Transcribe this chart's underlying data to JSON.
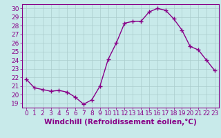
{
  "x": [
    0,
    1,
    2,
    3,
    4,
    5,
    6,
    7,
    8,
    9,
    10,
    11,
    12,
    13,
    14,
    15,
    16,
    17,
    18,
    19,
    20,
    21,
    22,
    23
  ],
  "y": [
    21.8,
    20.8,
    20.6,
    20.4,
    20.5,
    20.3,
    19.7,
    18.9,
    19.4,
    21.0,
    24.1,
    26.0,
    28.3,
    28.5,
    28.5,
    29.6,
    30.0,
    29.8,
    28.8,
    27.5,
    25.6,
    25.2,
    24.0,
    22.8
  ],
  "line_color": "#880088",
  "marker": "+",
  "markersize": 4,
  "linewidth": 1.0,
  "bg_color": "#c8eaea",
  "grid_color": "#aacccc",
  "xlabel": "Windchill (Refroidissement éolien,°C)",
  "xlim": [
    -0.5,
    23.5
  ],
  "ylim": [
    18.5,
    30.5
  ],
  "yticks": [
    19,
    20,
    21,
    22,
    23,
    24,
    25,
    26,
    27,
    28,
    29,
    30
  ],
  "xticks": [
    0,
    1,
    2,
    3,
    4,
    5,
    6,
    7,
    8,
    9,
    10,
    11,
    12,
    13,
    14,
    15,
    16,
    17,
    18,
    19,
    20,
    21,
    22,
    23
  ],
  "xlabel_fontsize": 7.5,
  "tick_fontsize": 6.5,
  "label_color": "#880088",
  "spine_color": "#880088"
}
